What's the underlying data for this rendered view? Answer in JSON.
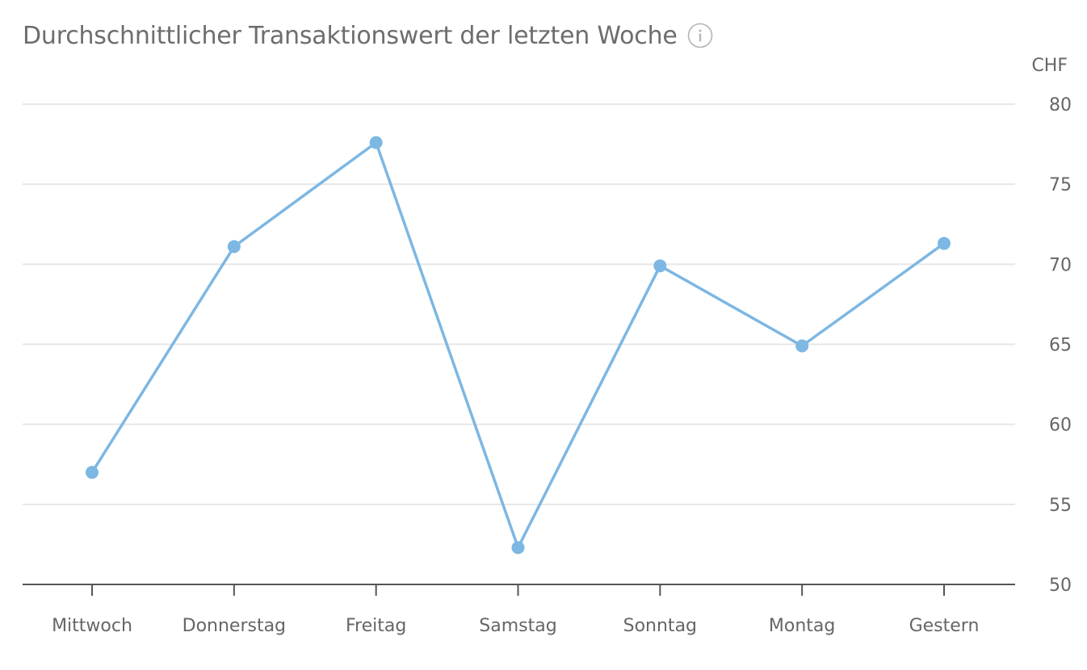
{
  "colors": {
    "series": "#7db7e3",
    "title": "#6d6d6d",
    "grid": "#e7e7e7",
    "axis": "#555555",
    "labels": "#666666"
  },
  "icons": {
    "title_info": "info-circle-icon"
  },
  "chart_data": {
    "type": "line",
    "title": "Durchschnittlicher Transaktionswert der letzten Woche",
    "ylabel": "CHF",
    "xlabel": "",
    "ylim": [
      50,
      80
    ],
    "yticks": [
      50,
      55,
      60,
      65,
      70,
      75,
      80
    ],
    "y_axis_side": "right",
    "grid": true,
    "legend": "none",
    "categories": [
      "Mittwoch",
      "Donnerstag",
      "Freitag",
      "Samstag",
      "Sonntag",
      "Montag",
      "Gestern"
    ],
    "series": [
      {
        "values": [
          57.0,
          71.1,
          77.6,
          52.3,
          69.9,
          64.9,
          71.3
        ]
      }
    ]
  }
}
